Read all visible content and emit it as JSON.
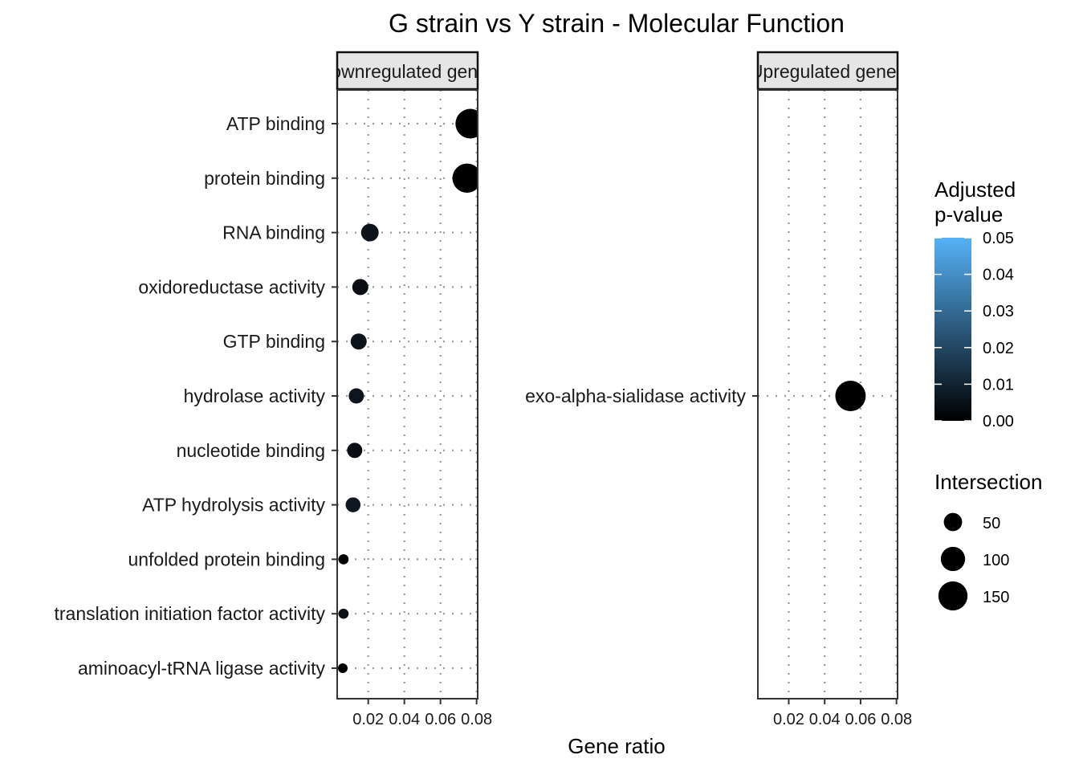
{
  "chart_data": {
    "type": "scatter",
    "title": "G strain vs Y strain - Molecular Function",
    "xlabel": "Gene ratio",
    "ylabel": "",
    "xlim": [
      0.0028,
      0.0806
    ],
    "x_ticks": [
      "0.02",
      "0.04",
      "0.06",
      "0.08"
    ],
    "x_tick_values": [
      0.02,
      0.04,
      0.06,
      0.08
    ],
    "grid": "dotted major gridlines",
    "legend_position": "right",
    "panels": [
      {
        "strip_label": "Downregulated genes",
        "strip_visible_text": "wnregulated ge",
        "categories": [
          "ATP binding",
          "protein binding",
          "RNA binding",
          "oxidoreductase activity",
          "GTP binding",
          "hydrolase activity",
          "nucleotide binding",
          "ATP hydrolysis activity",
          "unfolded protein binding",
          "translation initiation factor activity",
          "aminoacyl-tRNA ligase activity"
        ],
        "gene_ratio": [
          0.0765,
          0.0747,
          0.0209,
          0.0156,
          0.0147,
          0.0134,
          0.0125,
          0.0116,
          0.0063,
          0.0063,
          0.0059
        ],
        "intersection": [
          155,
          150,
          45,
          35,
          35,
          30,
          30,
          28,
          5,
          5,
          3
        ],
        "adjusted_p_value": [
          0.0,
          0.0,
          0.004,
          0.001,
          0.004,
          0.005,
          0.001,
          0.006,
          0.0,
          0.003,
          0.0
        ]
      },
      {
        "strip_label": "Upregulated genes",
        "strip_visible_text": "pregulated gen",
        "categories": [
          "exo-alpha-sialidase activity"
        ],
        "gene_ratio": [
          0.0544
        ],
        "intersection": [
          165
        ],
        "adjusted_p_value": [
          0.0
        ]
      }
    ],
    "color_legend": {
      "title_line1": "Adjusted",
      "title_line2": "p-value",
      "ticks": [
        "0.00",
        "0.01",
        "0.02",
        "0.03",
        "0.04",
        "0.05"
      ],
      "range": [
        0,
        0.05
      ],
      "low_color": "#000000",
      "high_color": "#56B1F7"
    },
    "size_legend": {
      "title": "Intersection",
      "values": [
        50,
        100,
        150
      ],
      "labels": [
        "50",
        "100",
        "150"
      ]
    }
  }
}
